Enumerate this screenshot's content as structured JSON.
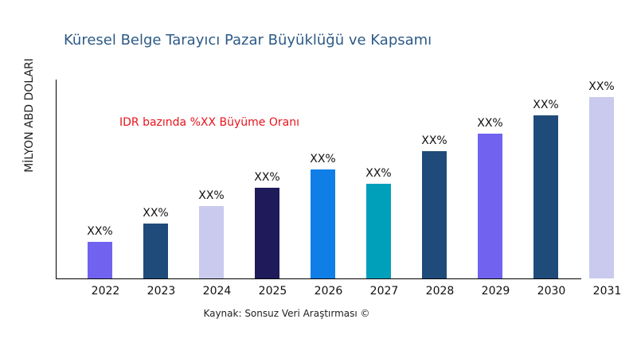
{
  "chart_data": {
    "type": "bar",
    "title": "Küresel Belge Tarayıcı Pazar Büyüklüğü ve Kapsamı",
    "ylabel": "MİLYON ABD DOLARI",
    "xlabel": "",
    "annotation": "IDR bazında %XX Büyüme Oranı",
    "source": "Kaynak: Sonsuz Veri Araştırması ©",
    "categories": [
      "2022",
      "2023",
      "2024",
      "2025",
      "2026",
      "2027",
      "2028",
      "2029",
      "2030",
      "2031"
    ],
    "values": [
      46,
      69,
      91,
      114,
      137,
      119,
      160,
      182,
      205,
      228
    ],
    "data_labels": [
      "XX%",
      "XX%",
      "XX%",
      "XX%",
      "XX%",
      "XX%",
      "XX%",
      "XX%",
      "XX%",
      "XX%"
    ],
    "colors": [
      "#7163f0",
      "#1f4b7a",
      "#c9caee",
      "#1f1a5a",
      "#0f7ee6",
      "#00a0ba",
      "#1f4b7a",
      "#7163f0",
      "#1f4b7a",
      "#c9caee"
    ],
    "grid": false,
    "legend": "none"
  }
}
